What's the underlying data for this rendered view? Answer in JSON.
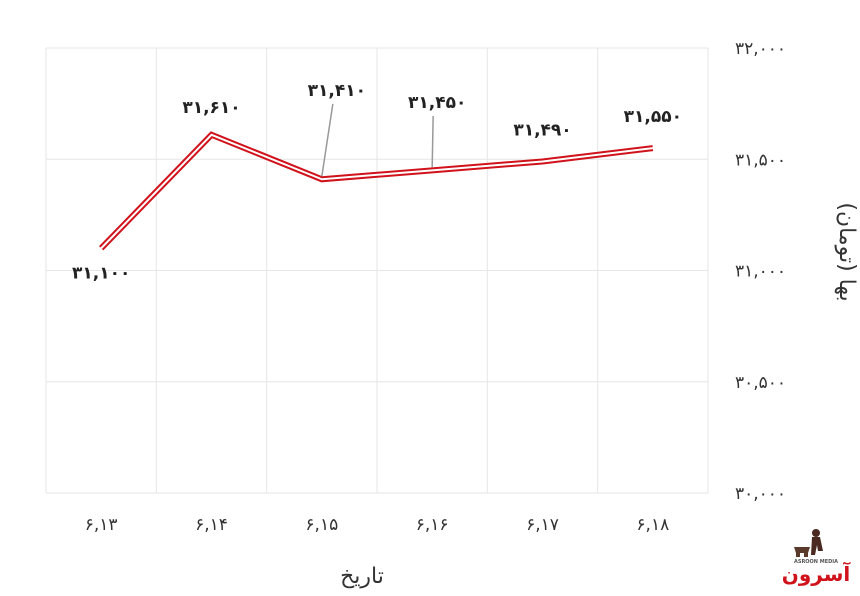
{
  "chart_data": {
    "type": "line",
    "categories": [
      "۶,۱۳",
      "۶,۱۴",
      "۶,۱۵",
      "۶,۱۶",
      "۶,۱۷",
      "۶,۱۸"
    ],
    "series": [
      {
        "values": [
          31100,
          31610,
          31410,
          31450,
          31490,
          31550
        ],
        "labels": [
          "۳۱,۱۰۰",
          "۳۱,۶۱۰",
          "۳۱,۴۱۰",
          "۳۱,۴۵۰",
          "۳۱,۴۹۰",
          "۳۱,۵۵۰"
        ],
        "color": "#d0121b"
      }
    ],
    "ylim": [
      30000,
      32000
    ],
    "yticks": [
      30000,
      30500,
      31000,
      31500,
      32000
    ],
    "ytick_labels": [
      "۳۰,۰۰۰",
      "۳۰,۵۰۰",
      "۳۱,۰۰۰",
      "۳۱,۵۰۰",
      "۳۲,۰۰۰"
    ],
    "xlabel": "تاریخ",
    "ylabel": "بها (تومان)",
    "y_axis_side": "right",
    "grid": true,
    "grid_color": "#e6e6e6"
  },
  "logo": {
    "text": "آسرون",
    "subtext": "ASROON MEDIA",
    "color": "#d0121b"
  }
}
